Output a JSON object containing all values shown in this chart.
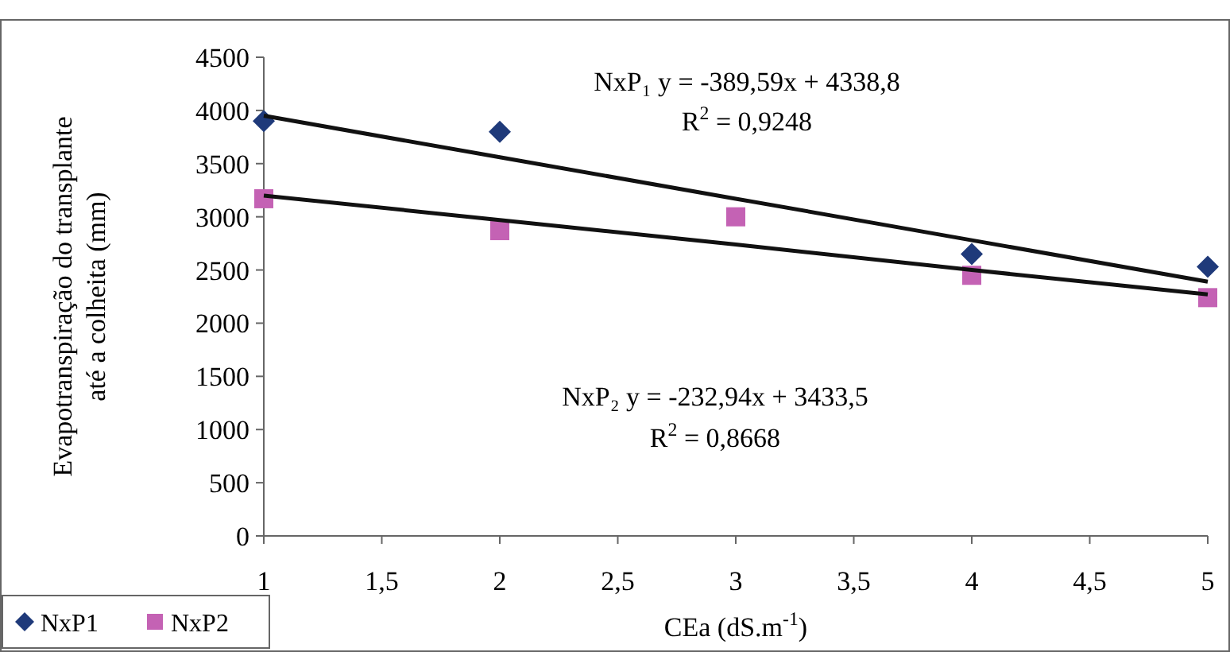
{
  "chart_data": {
    "type": "scatter",
    "xlabel": "CEa (dS.m$^{-1}$)",
    "ylabel": "Evapotranspiração do transplante\naté a colheita (mm)",
    "x": [
      1,
      2,
      3,
      4,
      5
    ],
    "series": [
      {
        "name": "NxP1",
        "color": "#1f3a7a",
        "marker": "diamond",
        "values": [
          3900,
          3800,
          null,
          2650,
          2530
        ]
      },
      {
        "name": "NxP2",
        "color": "#c462b4",
        "marker": "square",
        "values": [
          3170,
          2870,
          3000,
          2450,
          2240
        ]
      },
      {
        "type": "line",
        "color": "#111111",
        "values": [
          3950,
          3560,
          3170,
          2780,
          2390
        ]
      },
      {
        "type": "line",
        "color": "#111111",
        "values": [
          3200,
          2970,
          2740,
          2500,
          2270
        ]
      }
    ],
    "xlim": [
      1,
      5
    ],
    "xticks": [
      1,
      {
        "value": 1.5,
        "label": "1,5"
      },
      2,
      {
        "value": 2.5,
        "label": "2,5"
      },
      3,
      {
        "value": 3.5,
        "label": "3,5"
      },
      4,
      {
        "value": 4.5,
        "label": "4,5"
      },
      5
    ],
    "ylim": [
      0,
      4500
    ],
    "yticks": [
      0,
      500,
      1000,
      1500,
      2000,
      2500,
      3000,
      3500,
      4000,
      4500
    ],
    "annotations": [
      "NxP₁ y = -389,59x + 4338,8",
      "R$^{2}$ = 0,9248",
      "NxP₂ y = -232,94x + 3433,5",
      "R$^{2}$ = 0,8668"
    ],
    "grid": false,
    "legend": "bottom left"
  }
}
